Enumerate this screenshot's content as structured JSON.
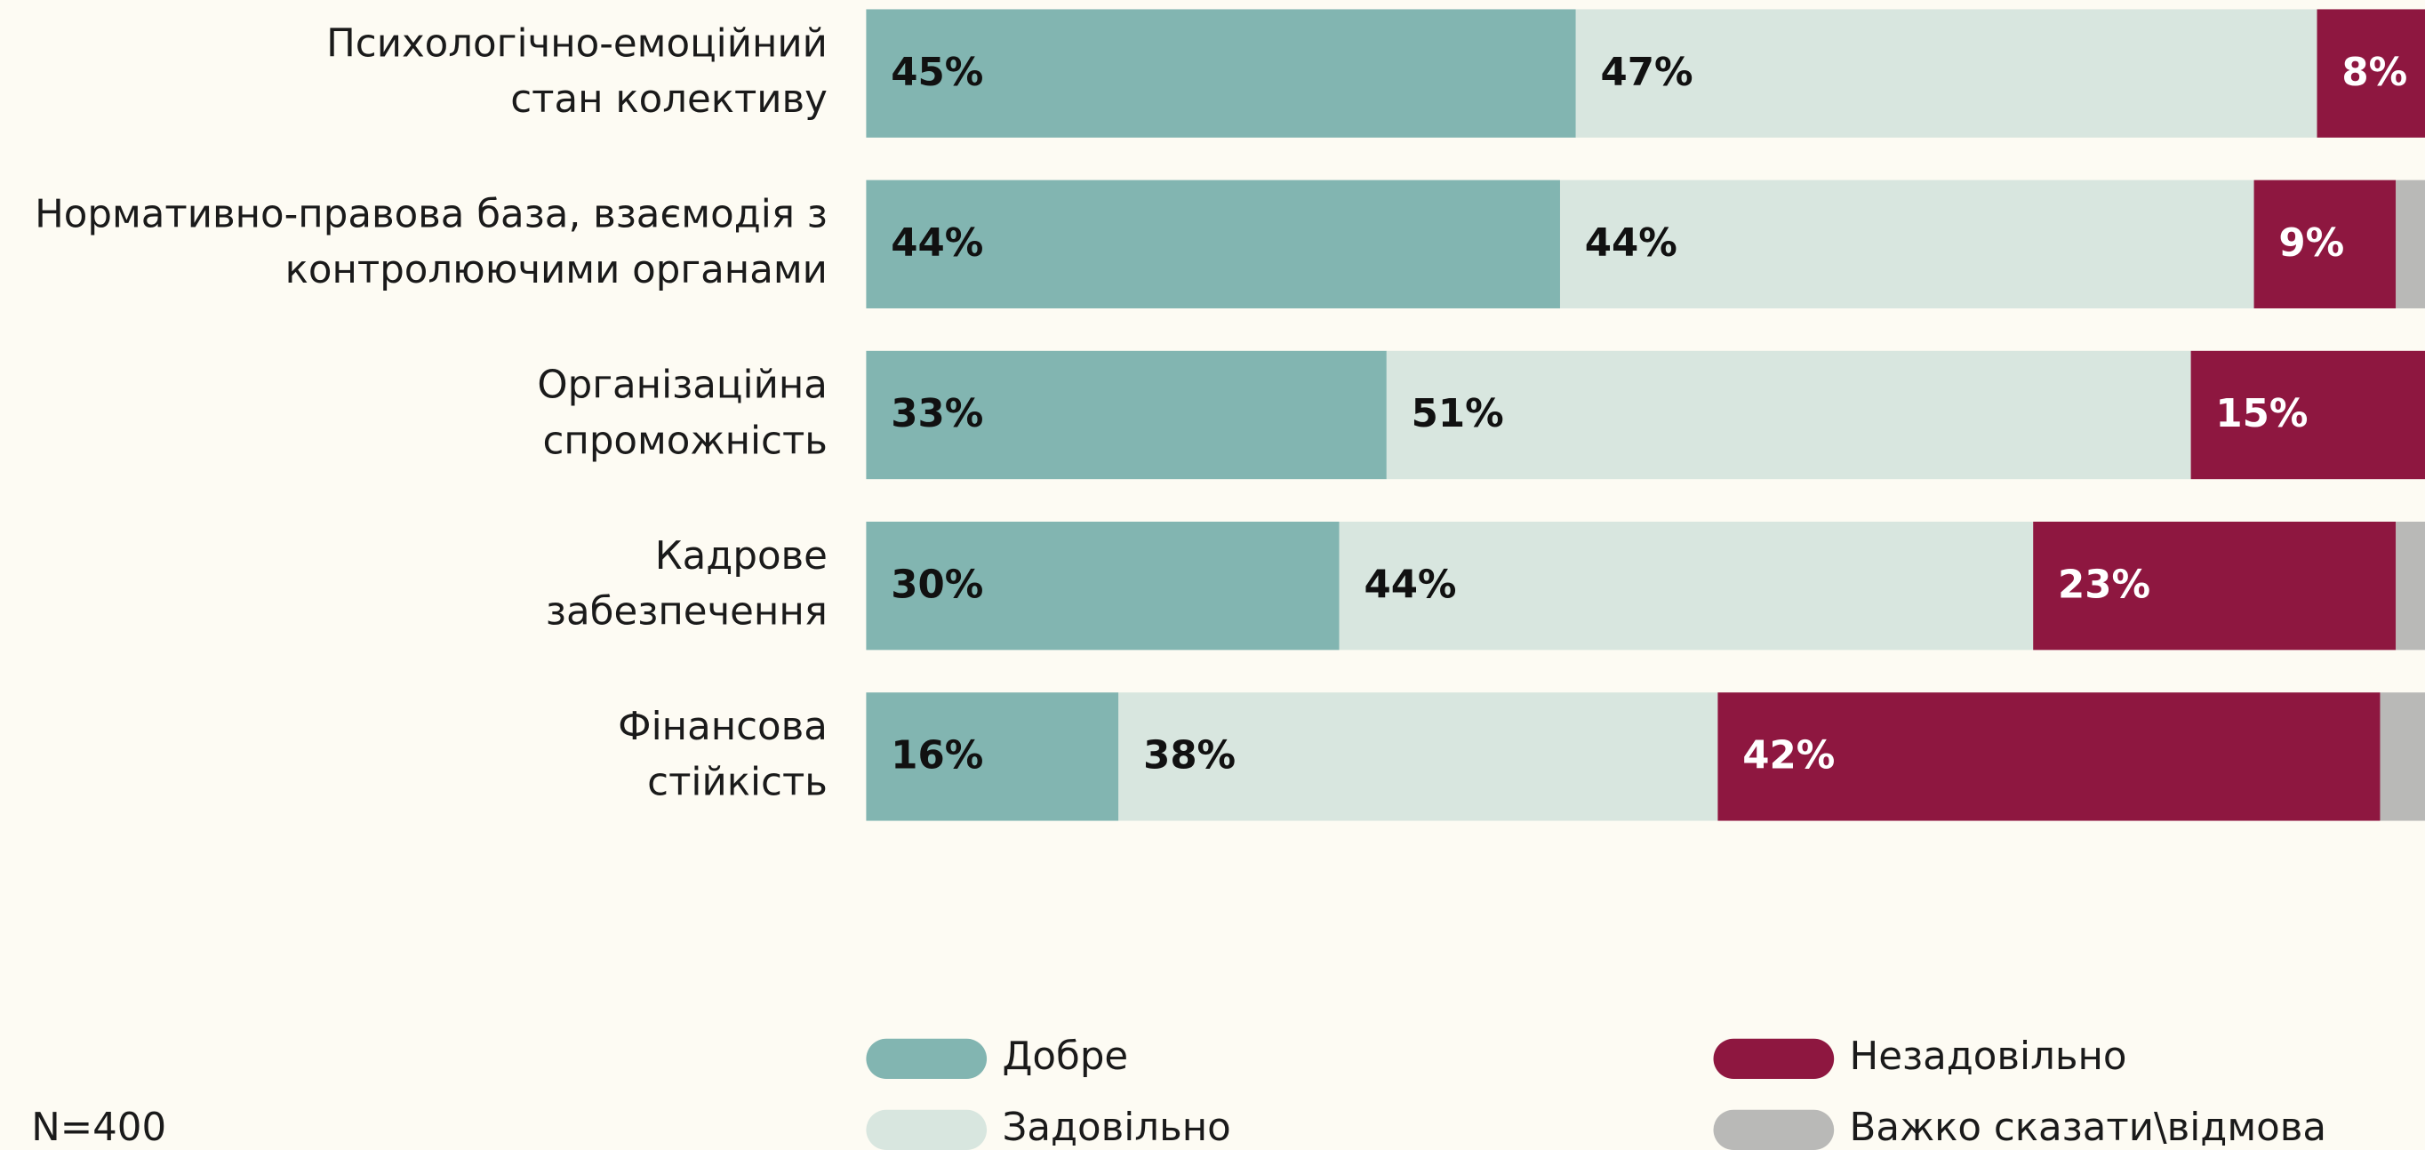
{
  "chart_data": {
    "type": "stacked-barh",
    "categories": [
      "Психологічно-емоційний\nстан колективу",
      "Нормативно-правова база, взаємодія з\nконтролюючими органами",
      "Організаційна\nспроможність",
      "Кадрове\nзабезпечення",
      "Фінансова\nстійкість"
    ],
    "series": [
      {
        "name": "Добре",
        "color": "#82b5b1",
        "text_color": "#111111",
        "values": [
          45,
          44,
          33,
          30,
          16
        ],
        "value_labels": [
          "45%",
          "44%",
          "33%",
          "30%",
          "16%"
        ]
      },
      {
        "name": "Задовільно",
        "color": "#d8e6df",
        "text_color": "#111111",
        "values": [
          47,
          44,
          51,
          44,
          38
        ],
        "value_labels": [
          "47%",
          "44%",
          "51%",
          "44%",
          "38%"
        ]
      },
      {
        "name": "Незадовільно",
        "color": "#8e1740",
        "text_color": "#ffffff",
        "values": [
          8,
          9,
          15,
          23,
          42
        ],
        "value_labels": [
          "8%",
          "9%",
          "15%",
          "23%",
          "42%"
        ]
      },
      {
        "name": "Важко сказати\\відмова",
        "color": "#b9b9b7",
        "values": [
          0,
          3,
          1,
          3,
          4
        ]
      }
    ],
    "xlim": [
      0,
      100
    ],
    "note": "N=400"
  }
}
